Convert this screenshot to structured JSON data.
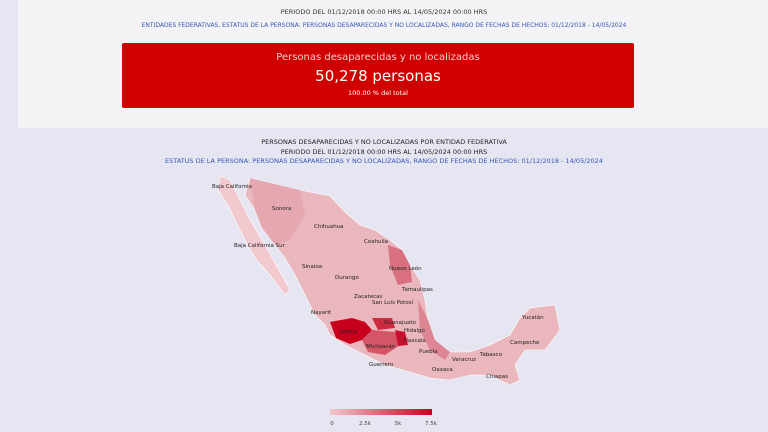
{
  "header": {
    "period": "PERIODO DEL 01/12/2018 00:00 HRS AL 14/05/2024 00:00 HRS",
    "filters": "ENTIDADES FEDERATIVAS, ESTATUS DE LA PERSONA: PERSONAS DESAPARECIDAS Y NO LOCALIZADAS, RANGO DE FECHAS DE HECHOS: 01/12/2018 - 14/05/2024"
  },
  "summary": {
    "title": "Personas desaparecidas y no localizadas",
    "count": "50,278 personas",
    "percent": "100.00 % del total",
    "color": "#d00000"
  },
  "map": {
    "title": "PERSONAS DESAPARECIDAS Y NO LOCALIZADAS POR ENTIDAD FEDERATIVA",
    "period": "PERIODO DEL 01/12/2018 00:00 HRS AL 14/05/2024 00:00 HRS",
    "filters": "ESTATUS DE LA PERSONA: PERSONAS DESAPARECIDAS Y NO LOCALIZADAS, RANGO DE FECHAS DE HECHOS: 01/12/2018 - 14/05/2024",
    "states": [
      "Baja California",
      "Sonora",
      "Chihuahua",
      "Coahuila",
      "Baja California Sur",
      "Nuevo León",
      "Sinaloa",
      "Durango",
      "Tamaulipas",
      "Zacatecas",
      "San Luis Potosí",
      "Nayarit",
      "Guanajuato",
      "Jalisco",
      "Hidalgo",
      "Yucatán",
      "Campeche",
      "Michoacán",
      "Tlaxcala",
      "Puebla",
      "Tabasco",
      "Veracruz",
      "Guerrero",
      "Oaxaca",
      "Chiapas"
    ],
    "legend": {
      "ticks": [
        "0",
        "2.5k",
        "5k",
        "7.5k"
      ],
      "color_low": "#f0c8cc",
      "color_high": "#c8001e"
    }
  }
}
